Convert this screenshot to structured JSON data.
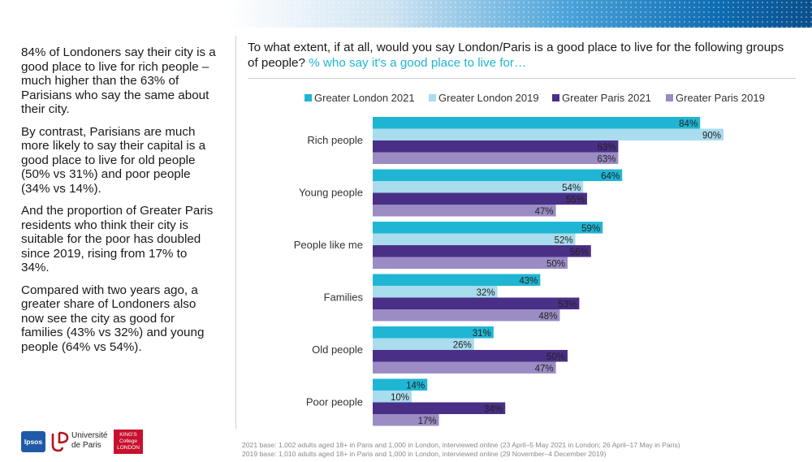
{
  "summary": {
    "paragraphs": [
      "84% of Londoners say their city is a good place to live for rich people – much higher than the 63% of Parisians who say the same about their city.",
      "By contrast, Parisians are much more likely to say their capital is a good place to live for old people (50% vs 31%) and poor people (34% vs 14%).",
      "And the proportion of Greater Paris residents who think their city is suitable for the poor has doubled since 2019, rising from 17% to 34%.",
      "Compared with two years ago, a greater share of Londoners also now see the city as good for families (43% vs 32%) and young people (64% vs 54%)."
    ]
  },
  "question": {
    "text": "To what extent, if at all, would you say London/Paris is a good place to live for the following groups of people?",
    "highlight": "% who say it's a good place to live for…"
  },
  "chart_data": {
    "type": "bar",
    "orientation": "horizontal",
    "categories": [
      "Rich people",
      "Young people",
      "People like me",
      "Families",
      "Old people",
      "Poor people"
    ],
    "series": [
      {
        "name": "Greater London 2021",
        "color": "#1fb6d4",
        "values": [
          84,
          64,
          59,
          43,
          31,
          14
        ]
      },
      {
        "name": "Greater London 2019",
        "color": "#a9dced",
        "values": [
          90,
          54,
          52,
          32,
          26,
          10
        ]
      },
      {
        "name": "Greater Paris 2021",
        "color": "#4a2f87",
        "values": [
          63,
          55,
          56,
          53,
          50,
          34
        ]
      },
      {
        "name": "Greater Paris 2019",
        "color": "#9b8cc4",
        "values": [
          63,
          47,
          50,
          48,
          47,
          17
        ]
      }
    ],
    "value_suffix": "%",
    "xlim": [
      0,
      100
    ],
    "legend_position": "top",
    "grid": false
  },
  "footnote": {
    "line1": "2021 base: 1,002 adults aged 18+ in Paris and 1,000 in London, interviewed online (23 April–5 May 2021 in London; 26 April–17 May in Paris)",
    "line2": "2019 base: 1,010 adults aged 18+ in Paris and 1,000 in London, interviewed online (29 November–4 December 2019)"
  },
  "logos": {
    "ipsos": "Ipsos",
    "universite_line1": "Université",
    "universite_line2": "de Paris",
    "kcl_line1": "KING'S",
    "kcl_line2": "College",
    "kcl_line3": "LONDON"
  }
}
